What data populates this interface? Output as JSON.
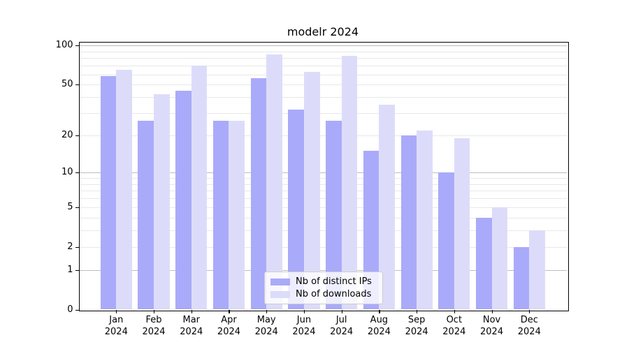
{
  "title": "modelr 2024",
  "legend": {
    "items": [
      {
        "label": "Nb of distinct IPs",
        "color": "#aaaafa"
      },
      {
        "label": "Nb of downloads",
        "color": "#dcdcfa"
      }
    ]
  },
  "chart_data": {
    "type": "bar",
    "title": "modelr 2024",
    "categories": [
      "Jan 2024",
      "Feb 2024",
      "Mar 2024",
      "Apr 2024",
      "May 2024",
      "Jun 2024",
      "Jul 2024",
      "Aug 2024",
      "Sep 2024",
      "Oct 2024",
      "Nov 2024",
      "Dec 2024"
    ],
    "series": [
      {
        "name": "Nb of distinct IPs",
        "color": "#aaaafa",
        "values": [
          58,
          26,
          45,
          26,
          56,
          32,
          26,
          15,
          20,
          10,
          4,
          2
        ]
      },
      {
        "name": "Nb of downloads",
        "color": "#dcdcfa",
        "values": [
          65,
          42,
          70,
          26,
          85,
          63,
          83,
          35,
          22,
          19,
          5,
          3
        ]
      }
    ],
    "xlabel": "",
    "ylabel": "",
    "yscale": "log1p",
    "y_ticks": [
      100,
      50,
      20,
      10,
      5,
      2,
      1,
      0
    ],
    "ylim": [
      0,
      105
    ],
    "grid": "horizontal",
    "legend_position": "lower center"
  }
}
